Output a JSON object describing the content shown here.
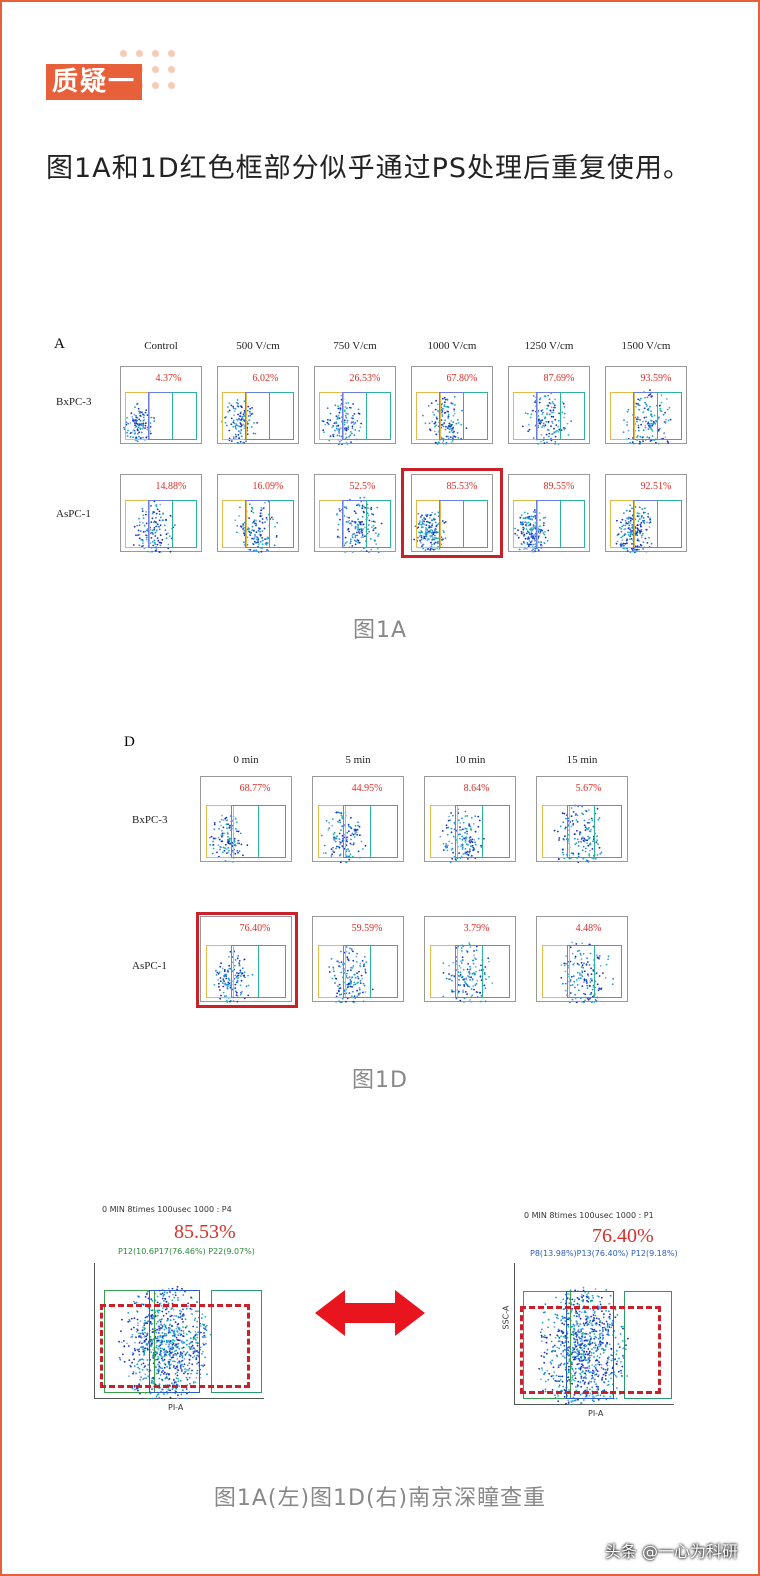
{
  "header": {
    "badge": "质疑一"
  },
  "article": {
    "paragraph": "图1A和1D红色框部分似乎通过PS处理后重复使用。"
  },
  "figure_a": {
    "panel_letter": "A",
    "columns": [
      "Control",
      "500 V/cm",
      "750 V/cm",
      "1000 V/cm",
      "1250 V/cm",
      "1500 V/cm"
    ],
    "rows": [
      "BxPC-3",
      "AsPC-1"
    ],
    "bx_values": [
      "4.37%",
      "6.02%",
      "26.53%",
      "67.80%",
      "87.69%",
      "93.59%"
    ],
    "as_values": [
      "14.88%",
      "16.09%",
      "52.5%",
      "85.53%",
      "89.55%",
      "92.51%"
    ],
    "caption": "图1A"
  },
  "figure_d": {
    "panel_letter": "D",
    "columns": [
      "0 min",
      "5 min",
      "10 min",
      "15 min"
    ],
    "rows": [
      "BxPC-3",
      "AsPC-1"
    ],
    "bx_values": [
      "68.77%",
      "44.95%",
      "8.64%",
      "5.67%"
    ],
    "as_values": [
      "76.40%",
      "59.59%",
      "3.79%",
      "4.48%"
    ],
    "caption": "图1D"
  },
  "comparison": {
    "left_title": "0 MIN 8times 100usec 1000 : P4",
    "left_pct": "85.53%",
    "left_gates": "P12(10.6P17(76.46%)  P22(9.07%)",
    "right_title": "0 MIN 8times 100usec 1000 : P1",
    "right_pct": "76.40%",
    "right_gates": "P8(13.98%)P13(76.40%) P12(9.18%)",
    "right_ylabel": "SSC-A",
    "xlabel": "PI-A",
    "caption": "图1A(左)图1D(右)南京深瞳查重"
  },
  "watermark": "头条 @一心为科研",
  "colors": {
    "accent": "#e8603a",
    "red": "#d9302a"
  }
}
